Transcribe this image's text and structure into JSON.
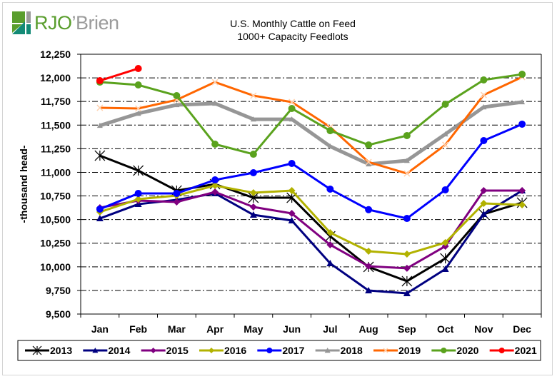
{
  "brand": {
    "logo_icon": "rjo-brien-logo-icon",
    "name_part1": "RJO",
    "name_part2": "’Brien",
    "colors": {
      "green": "#5a9e2e",
      "teal": "#138a76",
      "gray": "#9b9b9b"
    }
  },
  "chart_data": {
    "type": "line",
    "title": "U.S. Monthly Cattle on Feed",
    "subtitle": "1000+ Capacity Feedlots",
    "xlabel": "",
    "ylabel": "-thousand head-",
    "categories": [
      "Jan",
      "Feb",
      "Mar",
      "Apr",
      "May",
      "Jun",
      "Jul",
      "Aug",
      "Sep",
      "Oct",
      "Nov",
      "Dec"
    ],
    "ylim": [
      9500,
      12250
    ],
    "yticks": [
      9500,
      9750,
      10000,
      10250,
      10500,
      10750,
      11000,
      11250,
      11500,
      11750,
      12000,
      12250
    ],
    "ytick_labels": [
      "9,500",
      "9,750",
      "10,000",
      "10,250",
      "10,500",
      "10,750",
      "11,000",
      "11,250",
      "11,500",
      "11,750",
      "12,000",
      "12,250"
    ],
    "grid": "horizontal dash-dot",
    "legend_position": "bottom",
    "series": [
      {
        "name": "2013",
        "color": "#000000",
        "marker": "star",
        "values": [
          11177,
          11019,
          10807,
          10875,
          10731,
          10731,
          10323,
          9999,
          9848,
          10089,
          10558,
          10679
        ]
      },
      {
        "name": "2014",
        "color": "#000080",
        "marker": "triangle",
        "values": [
          10512,
          10663,
          10709,
          10777,
          10550,
          10490,
          10036,
          9749,
          9719,
          9976,
          10558,
          10807
        ]
      },
      {
        "name": "2015",
        "color": "#800080",
        "marker": "diamond",
        "values": [
          10626,
          10701,
          10686,
          10792,
          10633,
          10565,
          10233,
          10006,
          9984,
          10218,
          10807,
          10807
        ]
      },
      {
        "name": "2016",
        "color": "#b2b200",
        "marker": "diamond",
        "values": [
          10580,
          10716,
          10754,
          10860,
          10784,
          10807,
          10361,
          10165,
          10135,
          10256,
          10671,
          10656
        ]
      },
      {
        "name": "2017",
        "color": "#0000ff",
        "marker": "circle",
        "values": [
          10611,
          10777,
          10777,
          10920,
          10996,
          11094,
          10822,
          10605,
          10512,
          10815,
          11336,
          11510
        ]
      },
      {
        "name": "2018",
        "color": "#969696",
        "marker": "triangle",
        "values": [
          11495,
          11623,
          11714,
          11729,
          11562,
          11562,
          11275,
          11087,
          11124,
          11404,
          11691,
          11744
        ]
      },
      {
        "name": "2019",
        "color": "#ff6600",
        "marker": "x",
        "values": [
          11683,
          11676,
          11767,
          11955,
          11812,
          11744,
          11479,
          11109,
          10988,
          11291,
          11819,
          12008
        ]
      },
      {
        "name": "2020",
        "color": "#5aa21d",
        "marker": "circle",
        "values": [
          11955,
          11925,
          11812,
          11298,
          11192,
          11676,
          11441,
          11290,
          11389,
          11721,
          11978,
          12038
        ]
      },
      {
        "name": "2021",
        "color": "#ff0000",
        "marker": "circle",
        "values": [
          11970,
          12099,
          null,
          null,
          null,
          null,
          null,
          null,
          null,
          null,
          null,
          null
        ]
      }
    ]
  }
}
